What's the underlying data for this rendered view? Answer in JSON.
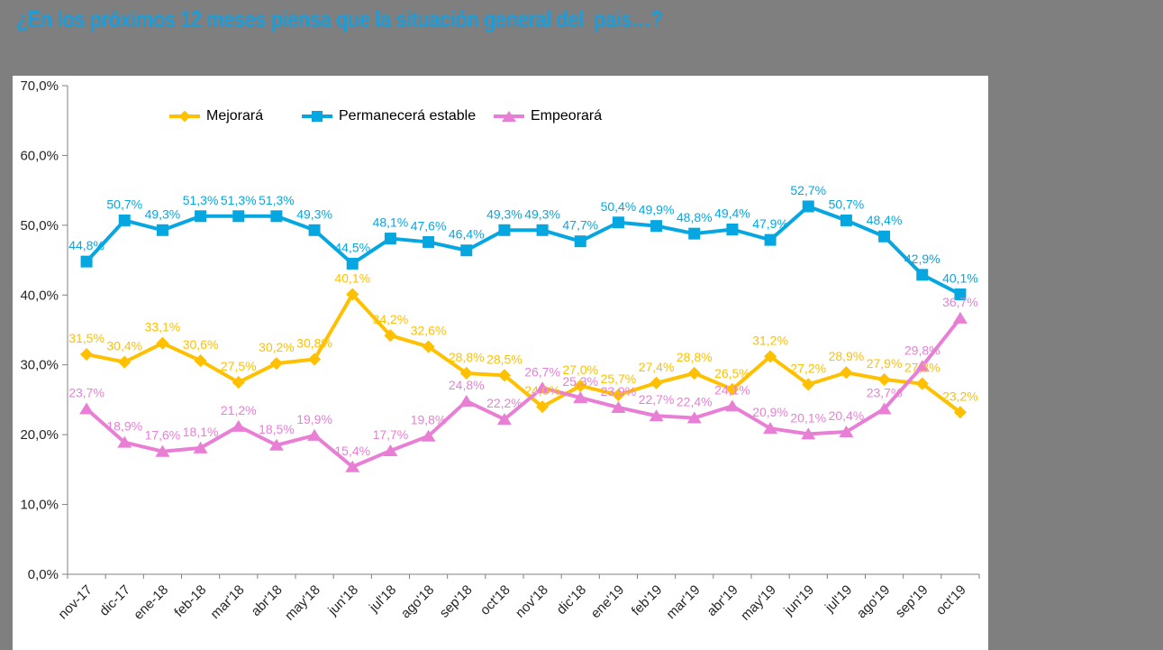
{
  "title": "¿En los próximos 12 meses piensa que la situación general del  pais…?",
  "colors": {
    "background": "#7F7F7F",
    "plot_background": "#FFFFFF",
    "title_text": "#1E9CD7",
    "axis_line": "#808080",
    "axis_text": "#262626",
    "mejorara": "#FFC000",
    "estable": "#06A7E0",
    "empeorara": "#E97FD5"
  },
  "legend": [
    {
      "label": "Mejorará",
      "marker": "diamond",
      "color_key": "mejorara"
    },
    {
      "label": "Permanecerá estable",
      "marker": "square",
      "color_key": "estable"
    },
    {
      "label": "Empeorará",
      "marker": "triangle",
      "color_key": "empeorara"
    }
  ],
  "y_axis": {
    "min": 0,
    "max": 70,
    "step": 10,
    "tick_labels": [
      "0,0%",
      "10,0%",
      "20,0%",
      "30,0%",
      "40,0%",
      "50,0%",
      "60,0%",
      "70,0%"
    ]
  },
  "chart_data": {
    "type": "line",
    "title": "¿En los próximos 12 meses piensa que la situación general del pais…?",
    "categories": [
      "nov-17",
      "dic-17",
      "ene-18",
      "feb-18",
      "mar'18",
      "abr'18",
      "may'18",
      "jun'18",
      "jul'18",
      "ago'18",
      "sep'18",
      "oct'18",
      "nov'18",
      "dic'18",
      "ene'19",
      "feb'19",
      "mar'19",
      "abr'19",
      "may'19",
      "jun'19",
      "jul'19",
      "ago'19",
      "sep'19",
      "oct'19"
    ],
    "ylim": [
      0,
      70
    ],
    "y_tick_step": 10,
    "grid": false,
    "legend_position": "top",
    "value_label_format": "decimal-comma-percent",
    "series": [
      {
        "name": "Mejorará",
        "marker": "diamond",
        "color_key": "mejorara",
        "values": [
          31.5,
          30.4,
          33.1,
          30.6,
          27.5,
          30.2,
          30.8,
          40.1,
          34.2,
          32.6,
          28.8,
          28.5,
          24.0,
          27.0,
          25.7,
          27.4,
          28.8,
          26.5,
          31.2,
          27.2,
          28.9,
          27.9,
          27.3,
          23.2
        ],
        "labels": [
          "31,5%",
          "30,4%",
          "33,1%",
          "30,6%",
          "27,5%",
          "30,2%",
          "30,8%",
          "40,1%",
          "34,2%",
          "32,6%",
          "28,8%",
          "28,5%",
          "24,0%",
          "27,0%",
          "25,7%",
          "27,4%",
          "28,8%",
          "26,5%",
          "31,2%",
          "27,2%",
          "28,9%",
          "27,9%",
          "27,3%",
          "23,2%"
        ]
      },
      {
        "name": "Permanecerá estable",
        "marker": "square",
        "color_key": "estable",
        "values": [
          44.8,
          50.7,
          49.3,
          51.3,
          51.3,
          51.3,
          49.3,
          44.5,
          48.1,
          47.6,
          46.4,
          49.3,
          49.3,
          47.7,
          50.4,
          49.9,
          48.8,
          49.4,
          47.9,
          52.7,
          50.7,
          48.4,
          42.9,
          40.1
        ],
        "labels": [
          "44,8%",
          "50,7%",
          "49,3%",
          "51,3%",
          "51,3%",
          "51,3%",
          "49,3%",
          "44,5%",
          "48,1%",
          "47,6%",
          "46,4%",
          "49,3%",
          "49,3%",
          "47,7%",
          "50,4%",
          "49,9%",
          "48,8%",
          "49,4%",
          "47,9%",
          "52,7%",
          "50,7%",
          "48,4%",
          "42,9%",
          "40,1%"
        ]
      },
      {
        "name": "Empeorará",
        "marker": "triangle",
        "color_key": "empeorara",
        "values": [
          23.7,
          18.9,
          17.6,
          18.1,
          21.2,
          18.5,
          19.9,
          15.4,
          17.7,
          19.8,
          24.8,
          22.2,
          26.7,
          25.3,
          23.9,
          22.7,
          22.4,
          24.1,
          20.9,
          20.1,
          20.4,
          23.7,
          29.8,
          36.7
        ],
        "labels": [
          "23,7%",
          "18,9%",
          "17,6%",
          "18,1%",
          "21,2%",
          "18,5%",
          "19,9%",
          "15,4%",
          "17,7%",
          "19,8%",
          "24,8%",
          "22,2%",
          "26,7%",
          "25,3%",
          "23,9%",
          "22,7%",
          "22,4%",
          "24,1%",
          "20,9%",
          "20,1%",
          "20,4%",
          "23,7%",
          "29,8%",
          "36,7%"
        ]
      }
    ]
  }
}
